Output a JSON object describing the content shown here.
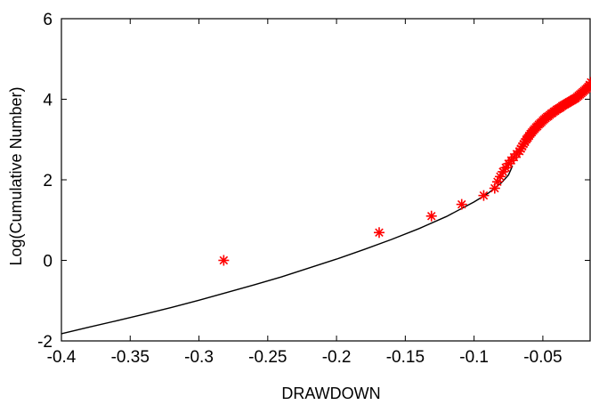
{
  "chart_data": {
    "type": "scatter",
    "title": "",
    "xlabel": "DRAWDOWN",
    "ylabel": "Log(Cumulative Number)",
    "xlim": [
      -0.4,
      -0.015
    ],
    "ylim": [
      -2,
      6
    ],
    "x_ticks": [
      -0.4,
      -0.35,
      -0.3,
      -0.25,
      -0.2,
      -0.15,
      -0.1,
      -0.05
    ],
    "x_tick_labels": [
      "-0.4",
      "-0.35",
      "-0.3",
      "-0.25",
      "-0.2",
      "-0.15",
      "-0.1",
      "-0.05"
    ],
    "y_ticks": [
      -2,
      0,
      2,
      4,
      6
    ],
    "y_tick_labels": [
      "-2",
      "0",
      "2",
      "4",
      "6"
    ],
    "grid": false,
    "series": [
      {
        "kind": "scatter",
        "marker": "asterisk",
        "color": "#ff0000",
        "points": [
          [
            -0.282,
            0.0
          ],
          [
            -0.169,
            0.69
          ],
          [
            -0.131,
            1.1
          ],
          [
            -0.109,
            1.39
          ],
          [
            -0.093,
            1.61
          ],
          [
            -0.085,
            1.79
          ],
          [
            -0.083,
            1.95
          ],
          [
            -0.081,
            2.08
          ],
          [
            -0.079,
            2.2
          ],
          [
            -0.077,
            2.3
          ],
          [
            -0.075,
            2.4
          ],
          [
            -0.073,
            2.48
          ],
          [
            -0.071,
            2.56
          ],
          [
            -0.069,
            2.64
          ],
          [
            -0.067,
            2.71
          ],
          [
            -0.066,
            2.77
          ],
          [
            -0.065,
            2.83
          ],
          [
            -0.064,
            2.89
          ],
          [
            -0.063,
            2.94
          ],
          [
            -0.062,
            3.0
          ],
          [
            -0.061,
            3.04
          ],
          [
            -0.06,
            3.09
          ],
          [
            -0.059,
            3.14
          ],
          [
            -0.058,
            3.18
          ],
          [
            -0.057,
            3.22
          ],
          [
            -0.056,
            3.26
          ],
          [
            -0.055,
            3.3
          ],
          [
            -0.054,
            3.33
          ],
          [
            -0.053,
            3.37
          ],
          [
            -0.052,
            3.4
          ],
          [
            -0.051,
            3.43
          ],
          [
            -0.05,
            3.47
          ],
          [
            -0.049,
            3.5
          ],
          [
            -0.048,
            3.53
          ],
          [
            -0.047,
            3.56
          ],
          [
            -0.046,
            3.58
          ],
          [
            -0.045,
            3.61
          ],
          [
            -0.044,
            3.64
          ],
          [
            -0.043,
            3.66
          ],
          [
            -0.042,
            3.69
          ],
          [
            -0.041,
            3.71
          ],
          [
            -0.04,
            3.74
          ],
          [
            -0.039,
            3.76
          ],
          [
            -0.038,
            3.78
          ],
          [
            -0.037,
            3.8
          ],
          [
            -0.036,
            3.83
          ],
          [
            -0.035,
            3.85
          ],
          [
            -0.034,
            3.87
          ],
          [
            -0.033,
            3.89
          ],
          [
            -0.032,
            3.91
          ],
          [
            -0.031,
            3.93
          ],
          [
            -0.03,
            3.95
          ],
          [
            -0.029,
            3.97
          ],
          [
            -0.028,
            3.99
          ],
          [
            -0.027,
            4.01
          ],
          [
            -0.026,
            4.03
          ],
          [
            -0.025,
            4.06
          ],
          [
            -0.024,
            4.09
          ],
          [
            -0.023,
            4.12
          ],
          [
            -0.022,
            4.15
          ],
          [
            -0.021,
            4.18
          ],
          [
            -0.02,
            4.21
          ],
          [
            -0.019,
            4.24
          ],
          [
            -0.018,
            4.27
          ],
          [
            -0.017,
            4.31
          ],
          [
            -0.016,
            4.36
          ],
          [
            -0.015,
            4.42
          ]
        ]
      },
      {
        "kind": "line",
        "color": "#000000",
        "points": [
          [
            -0.4,
            -1.82
          ],
          [
            -0.38,
            -1.66
          ],
          [
            -0.36,
            -1.5
          ],
          [
            -0.34,
            -1.34
          ],
          [
            -0.32,
            -1.17
          ],
          [
            -0.3,
            -0.99
          ],
          [
            -0.28,
            -0.8
          ],
          [
            -0.26,
            -0.61
          ],
          [
            -0.24,
            -0.41
          ],
          [
            -0.22,
            -0.19
          ],
          [
            -0.2,
            0.03
          ],
          [
            -0.18,
            0.27
          ],
          [
            -0.16,
            0.52
          ],
          [
            -0.14,
            0.79
          ],
          [
            -0.12,
            1.09
          ],
          [
            -0.1,
            1.45
          ],
          [
            -0.09,
            1.66
          ],
          [
            -0.08,
            1.93
          ],
          [
            -0.075,
            2.12
          ],
          [
            -0.072,
            2.35
          ]
        ]
      }
    ]
  }
}
